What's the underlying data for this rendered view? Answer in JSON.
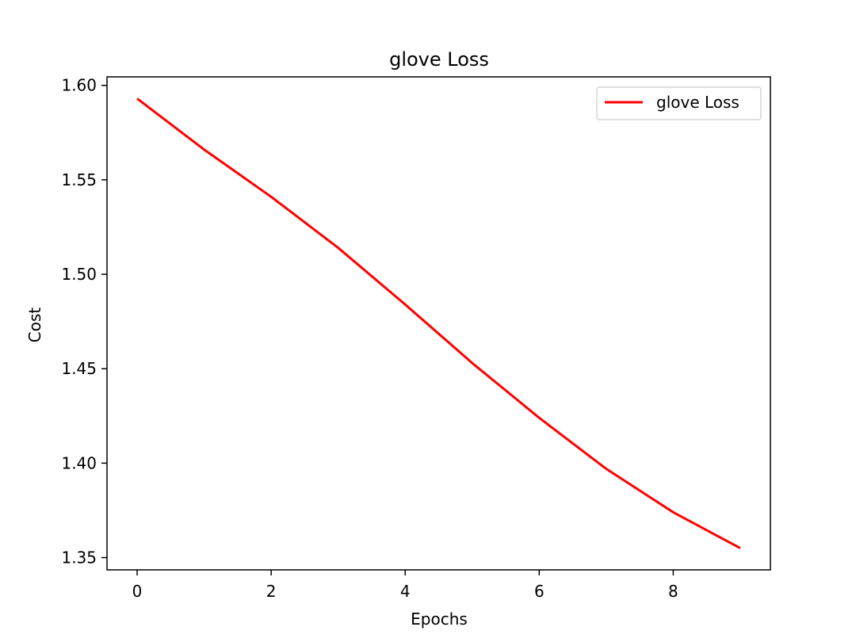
{
  "chart_data": {
    "type": "line",
    "title": "glove Loss",
    "xlabel": "Epochs",
    "ylabel": "Cost",
    "x": [
      0,
      1,
      2,
      3,
      4,
      5,
      6,
      7,
      8,
      9
    ],
    "series": [
      {
        "name": "glove Loss",
        "color": "#ff0000",
        "values": [
          1.593,
          1.566,
          1.541,
          1.514,
          1.484,
          1.453,
          1.424,
          1.397,
          1.374,
          1.355
        ]
      }
    ],
    "xlim": [
      -0.45,
      9.45
    ],
    "ylim": [
      1.3435,
      1.6045
    ],
    "xticks": [
      0,
      2,
      4,
      6,
      8
    ],
    "xtick_labels": [
      "0",
      "2",
      "4",
      "6",
      "8"
    ],
    "yticks": [
      1.35,
      1.4,
      1.45,
      1.5,
      1.55,
      1.6
    ],
    "ytick_labels": [
      "1.35",
      "1.40",
      "1.45",
      "1.50",
      "1.55",
      "1.60"
    ],
    "grid": false,
    "legend_position": "top-right"
  }
}
